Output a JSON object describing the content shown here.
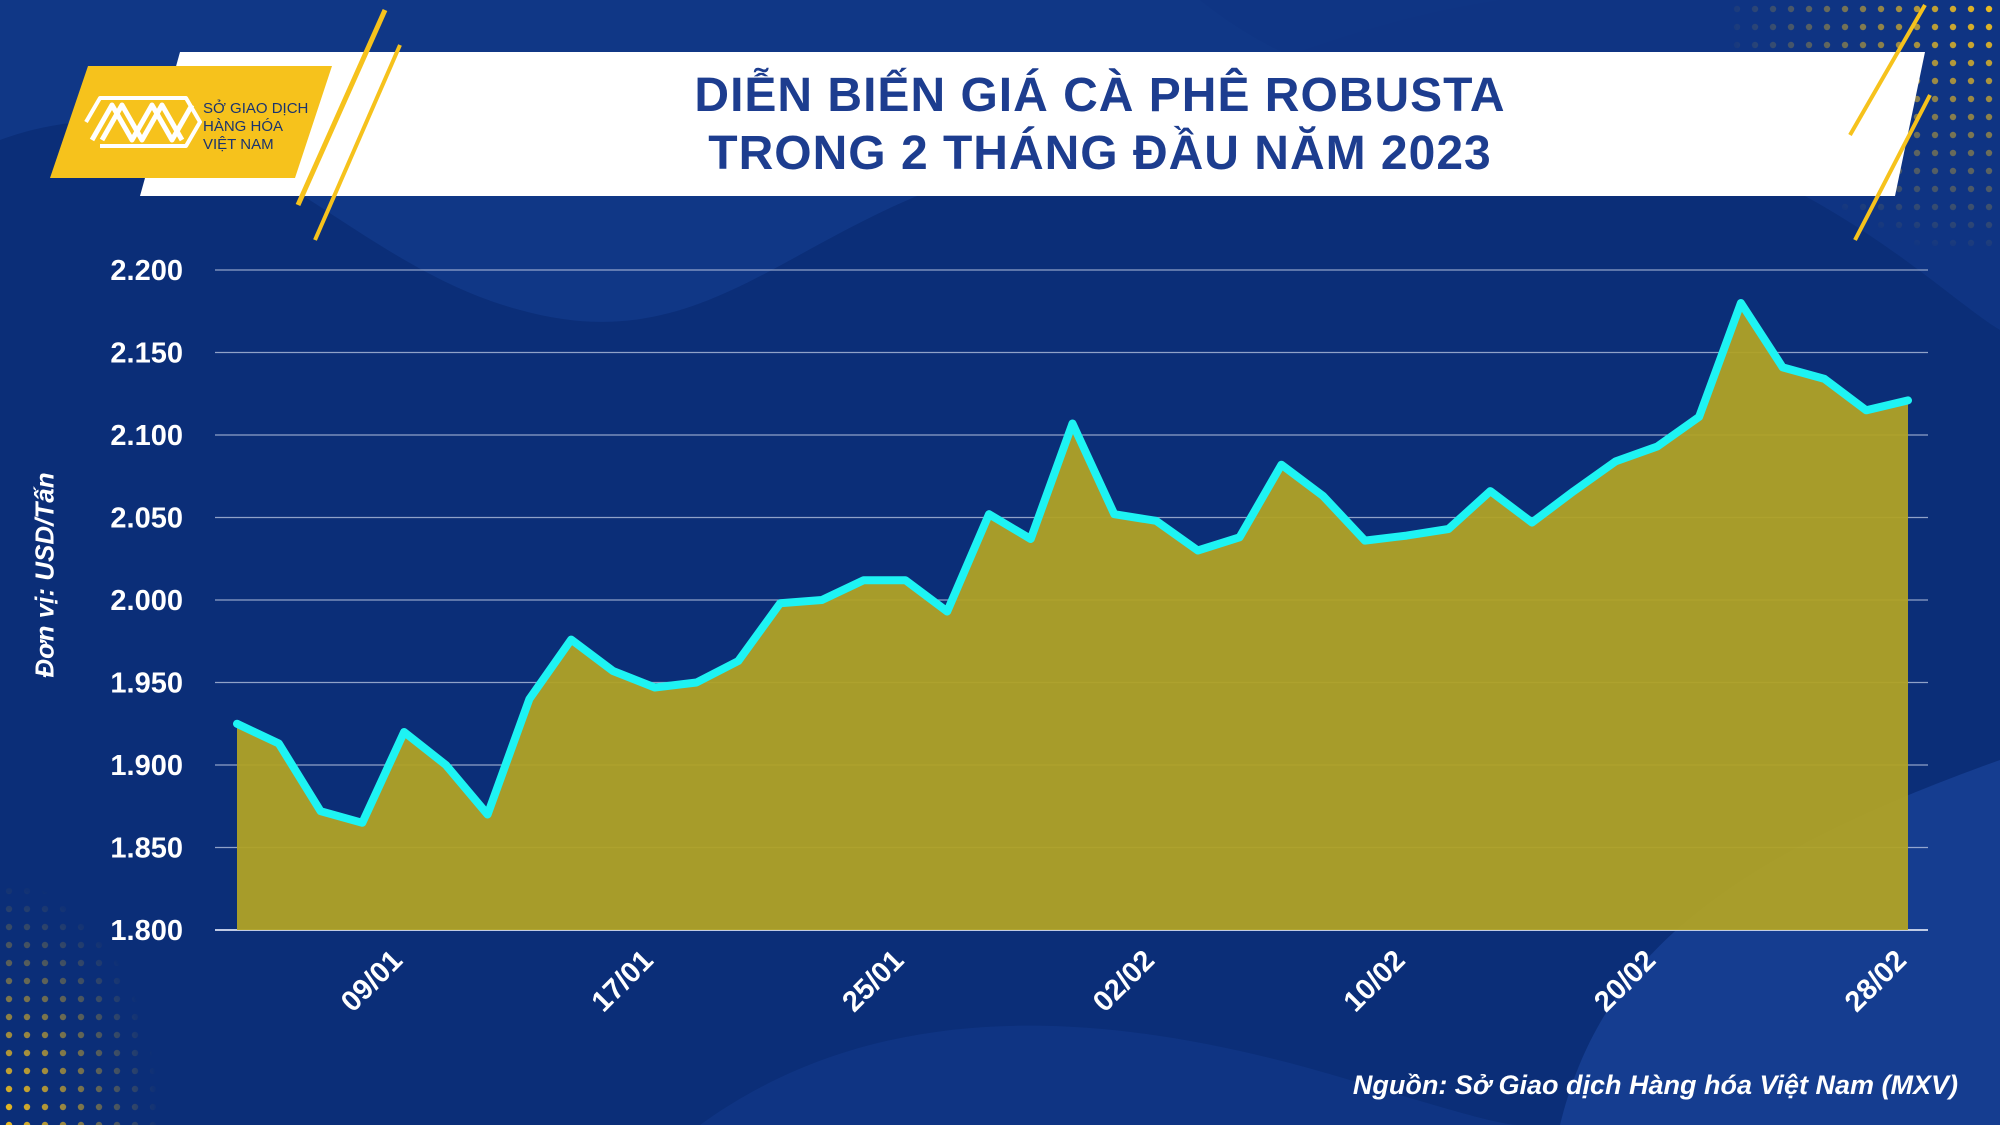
{
  "header": {
    "title_line1": "DIỄN BIẾN GIÁ CÀ PHÊ ROBUSTA",
    "title_line2": "TRONG 2 THÁNG ĐẦU NĂM 2023"
  },
  "logo": {
    "line1": "SỞ GIAO DỊCH",
    "line2": "HÀNG HÓA",
    "line3": "VIỆT NAM",
    "icon": "mxv-logo-icon"
  },
  "colors": {
    "background": "#0b2e78",
    "area_fill": "#b0a226",
    "line": "#1ef3f3",
    "accent": "#f6c21c"
  },
  "chart_data": {
    "type": "area",
    "ylabel": "Đơn vị: USD/Tấn",
    "ylim": [
      1800,
      2200
    ],
    "yticks": [
      "1.800",
      "1.850",
      "1.900",
      "1.950",
      "2.000",
      "2.050",
      "2.100",
      "2.150",
      "2.200"
    ],
    "yticks_values": [
      1800,
      1850,
      1900,
      1950,
      2000,
      2050,
      2100,
      2150,
      2200
    ],
    "xtick_labels": [
      "09/01",
      "17/01",
      "25/01",
      "02/02",
      "10/02",
      "20/02",
      "28/02"
    ],
    "xtick_indices": [
      4,
      10,
      16,
      22,
      28,
      34,
      40
    ],
    "values": [
      1925,
      1913,
      1872,
      1865,
      1920,
      1900,
      1870,
      1940,
      1976,
      1957,
      1947,
      1950,
      1963,
      1998,
      2000,
      2012,
      2012,
      1993,
      2052,
      2037,
      2107,
      2052,
      2048,
      2030,
      2038,
      2082,
      2063,
      2036,
      2039,
      2043,
      2066,
      2047,
      2066,
      2084,
      2093,
      2111,
      2180,
      2141,
      2134,
      2115,
      2121
    ],
    "grid": true,
    "legend": "none"
  },
  "source": "Nguồn: Sở Giao dịch Hàng hóa Việt Nam (MXV)"
}
